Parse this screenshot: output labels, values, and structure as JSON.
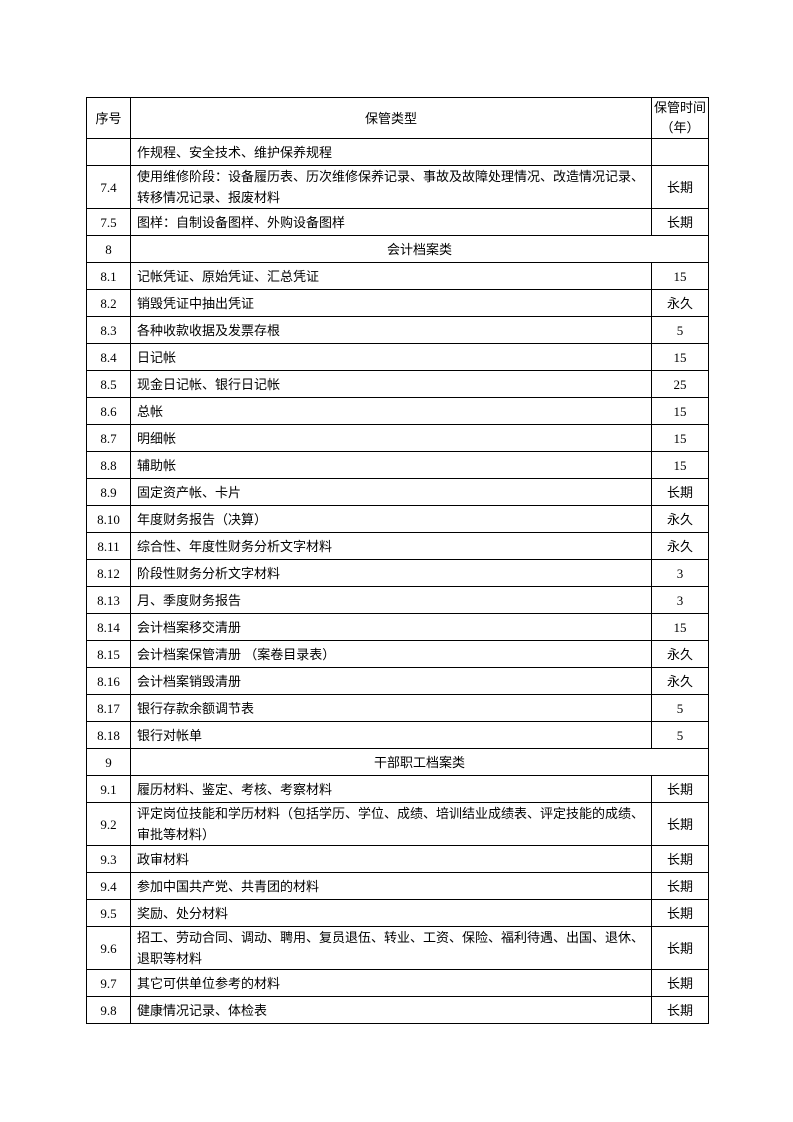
{
  "header": {
    "no": "序号",
    "type": "保管类型",
    "period": "保管时间（年）"
  },
  "rows": [
    {
      "no": "",
      "text": "作规程、安全技术、维护保养规程",
      "period": "",
      "lines": 1
    },
    {
      "no": "7.4",
      "text": "使用维修阶段：设备履历表、历次维修保养记录、事故及故障处理情况、改造情况记录、转移情况记录、报废材料",
      "period": "长期",
      "lines": 2
    },
    {
      "no": "7.5",
      "text": "图样：自制设备图样、外购设备图样",
      "period": "长期",
      "lines": 1
    },
    {
      "no": "8",
      "text": "会计档案类",
      "section": true,
      "lines": 1
    },
    {
      "no": "8.1",
      "text": "记帐凭证、原始凭证、汇总凭证",
      "period": "15",
      "lines": 1
    },
    {
      "no": "8.2",
      "text": "销毁凭证中抽出凭证",
      "period": "永久",
      "lines": 1
    },
    {
      "no": "8.3",
      "text": "各种收款收据及发票存根",
      "period": "5",
      "lines": 1
    },
    {
      "no": "8.4",
      "text": "日记帐",
      "period": "15",
      "lines": 1
    },
    {
      "no": "8.5",
      "text": "现金日记帐、银行日记帐",
      "period": "25",
      "lines": 1
    },
    {
      "no": "8.6",
      "text": "总帐",
      "period": "15",
      "lines": 1
    },
    {
      "no": "8.7",
      "text": "明细帐",
      "period": "15",
      "lines": 1
    },
    {
      "no": "8.8",
      "text": "辅助帐",
      "period": "15",
      "lines": 1
    },
    {
      "no": "8.9",
      "text": "固定资产帐、卡片",
      "period": "长期",
      "lines": 1
    },
    {
      "no": "8.10",
      "text": "年度财务报告（决算）",
      "period": "永久",
      "lines": 1
    },
    {
      "no": "8.11",
      "text": "综合性、年度性财务分析文字材料",
      "period": "永久",
      "lines": 1
    },
    {
      "no": "8.12",
      "text": "阶段性财务分析文字材料",
      "period": "3",
      "lines": 1
    },
    {
      "no": "8.13",
      "text": "月、季度财务报告",
      "period": "3",
      "lines": 1
    },
    {
      "no": "8.14",
      "text": "会计档案移交清册",
      "period": "15",
      "lines": 1
    },
    {
      "no": "8.15",
      "text": "会计档案保管清册 （案卷目录表）",
      "period": "永久",
      "lines": 1
    },
    {
      "no": "8.16",
      "text": "会计档案销毁清册",
      "period": "永久",
      "lines": 1
    },
    {
      "no": "8.17",
      "text": "银行存款余额调节表",
      "period": "5",
      "lines": 1
    },
    {
      "no": "8.18",
      "text": "银行对帐单",
      "period": "5",
      "lines": 1
    },
    {
      "no": "9",
      "text": "干部职工档案类",
      "section": true,
      "lines": 1
    },
    {
      "no": "9.1",
      "text": "履历材料、鉴定、考核、考察材料",
      "period": "长期",
      "lines": 1
    },
    {
      "no": "9.2",
      "text": "评定岗位技能和学历材料（包括学历、学位、成绩、培训结业成绩表、评定技能的成绩、审批等材料）",
      "period": "长期",
      "lines": 2
    },
    {
      "no": "9.3",
      "text": "政审材料",
      "period": "长期",
      "lines": 1
    },
    {
      "no": "9.4",
      "text": "参加中国共产党、共青团的材料",
      "period": "长期",
      "lines": 1
    },
    {
      "no": "9.5",
      "text": "奖励、处分材料",
      "period": "长期",
      "lines": 1
    },
    {
      "no": "9.6",
      "text": "招工、劳动合同、调动、聘用、复员退伍、转业、工资、保险、福利待遇、出国、退休、退职等材料",
      "period": "长期",
      "lines": 2
    },
    {
      "no": "9.7",
      "text": "其它可供单位参考的材料",
      "period": "长期",
      "lines": 1
    },
    {
      "no": "9.8",
      "text": "健康情况记录、体检表",
      "period": "长期",
      "lines": 1
    }
  ]
}
